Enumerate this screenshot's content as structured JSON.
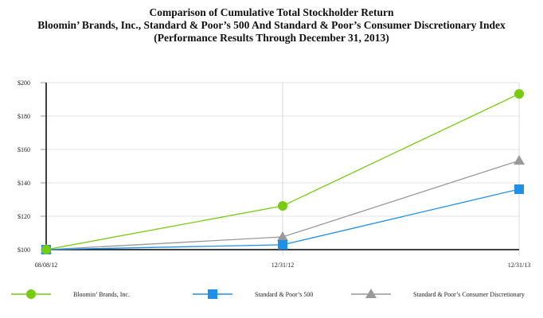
{
  "chart_data": {
    "type": "line",
    "title": [
      "Comparison of Cumulative Total Stockholder Return",
      "Bloomin’ Brands, Inc., Standard & Poor’s 500 And Standard & Poor’s Consumer Discretionary Index",
      "(Performance Results Through December 31, 2013)"
    ],
    "xlabel": "",
    "ylabel": "",
    "categories": [
      "08/08/12",
      "12/31/12",
      "12/31/13"
    ],
    "ylim": [
      100,
      200
    ],
    "yticks": [
      100,
      120,
      140,
      160,
      180,
      200
    ],
    "ytick_labels": [
      "$100",
      "$120",
      "$140",
      "$160",
      "$180",
      "$200"
    ],
    "grid": true,
    "legend_position": "bottom",
    "series": [
      {
        "name": "Bloomin’ Brands, Inc.",
        "values": [
          100,
          126.2,
          193.3
        ],
        "color": "#77cc11",
        "marker": "circle"
      },
      {
        "name": "Standard & Poor’s 500",
        "values": [
          100,
          102.9,
          136.2
        ],
        "color": "#1f8fe8",
        "marker": "square"
      },
      {
        "name": "Standard & Poor’s Consumer Discretionary",
        "values": [
          100,
          107.6,
          153.3
        ],
        "color": "#999999",
        "marker": "triangle"
      }
    ]
  }
}
